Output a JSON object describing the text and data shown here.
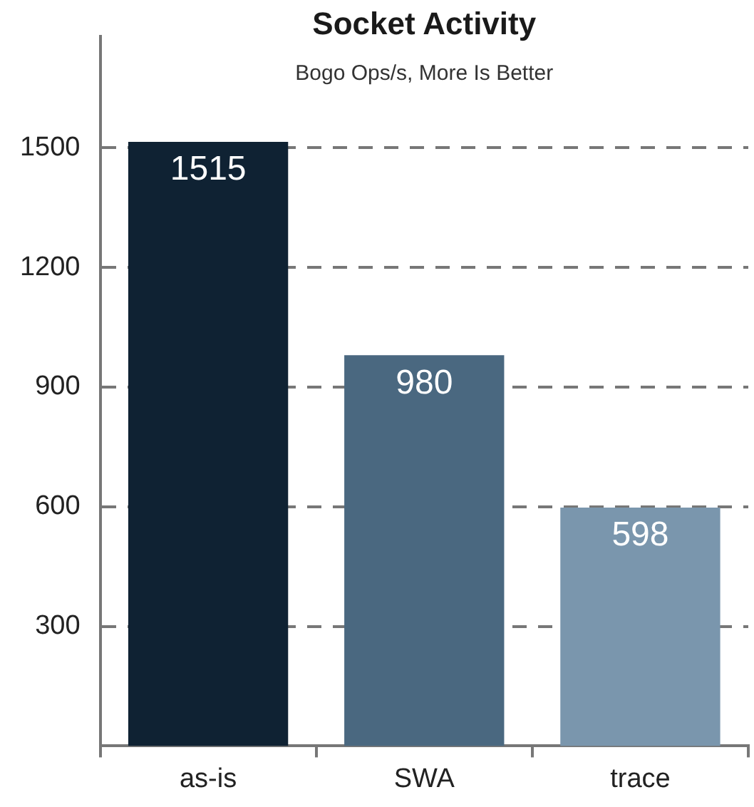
{
  "chart_data": {
    "type": "bar",
    "title": "Socket Activity",
    "subtitle": "Bogo Ops/s, More Is Better",
    "categories": [
      "as-is",
      "SWA",
      "trace"
    ],
    "values": [
      1515,
      980,
      598
    ],
    "colors": [
      "#0f2233",
      "#4a6880",
      "#7a96ad"
    ],
    "ylim": [
      0,
      1780
    ],
    "yticks": [
      300,
      600,
      900,
      1200,
      1500
    ],
    "grid": "y",
    "legend": false,
    "data_labels": true
  }
}
